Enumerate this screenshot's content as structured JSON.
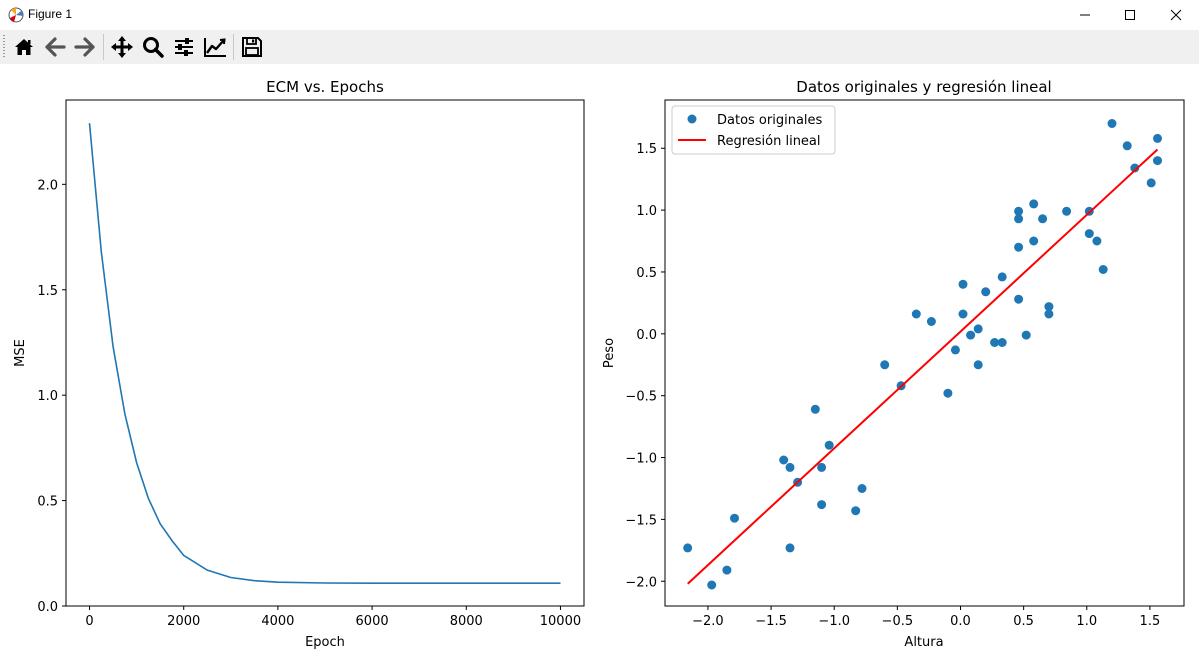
{
  "window": {
    "title": "Figure 1",
    "controls": [
      "minimize-icon",
      "maximize-icon",
      "close-icon"
    ]
  },
  "toolbar": {
    "buttons": [
      "home-icon",
      "back-arrow-icon",
      "forward-arrow-icon",
      "pan-icon",
      "zoom-icon",
      "subplots-config-icon",
      "axes-edit-icon",
      "save-icon"
    ]
  },
  "chart_data": [
    {
      "type": "line",
      "title": "ECM vs. Epochs",
      "xlabel": "Epoch",
      "ylabel": "MSE",
      "xlim": [
        -500,
        10500
      ],
      "ylim": [
        0.0,
        2.4
      ],
      "xticks": [
        0,
        2000,
        4000,
        6000,
        8000,
        10000
      ],
      "xtick_labels": [
        "0",
        "2000",
        "4000",
        "6000",
        "8000",
        "10000"
      ],
      "yticks": [
        0.0,
        0.5,
        1.0,
        1.5,
        2.0
      ],
      "ytick_labels": [
        "0.0",
        "0.5",
        "1.0",
        "1.5",
        "2.0"
      ],
      "grid": false,
      "series": [
        {
          "color": "#1f77b4",
          "x": [
            0,
            250,
            500,
            750,
            1000,
            1250,
            1500,
            1750,
            2000,
            2500,
            3000,
            3500,
            4000,
            5000,
            6000,
            7000,
            8000,
            9000,
            10000
          ],
          "y": [
            2.29,
            1.68,
            1.23,
            0.91,
            0.68,
            0.51,
            0.39,
            0.31,
            0.24,
            0.17,
            0.135,
            0.12,
            0.113,
            0.109,
            0.108,
            0.108,
            0.108,
            0.108,
            0.108
          ]
        }
      ]
    },
    {
      "type": "scatter",
      "title": "Datos originales y regresión lineal",
      "xlabel": "Altura",
      "ylabel": "Peso",
      "xlim": [
        -2.34,
        1.77
      ],
      "ylim": [
        -2.2,
        1.89
      ],
      "xticks": [
        -2.0,
        -1.5,
        -1.0,
        -0.5,
        0.0,
        0.5,
        1.0,
        1.5
      ],
      "xtick_labels": [
        "−2.0",
        "−1.5",
        "−1.0",
        "−0.5",
        "0.0",
        "0.5",
        "1.0",
        "1.5"
      ],
      "yticks": [
        -2.0,
        -1.5,
        -1.0,
        -0.5,
        0.0,
        0.5,
        1.0,
        1.5
      ],
      "ytick_labels": [
        "−2.0",
        "−1.5",
        "−1.0",
        "−0.5",
        "0.0",
        "0.5",
        "1.0",
        "1.5"
      ],
      "grid": false,
      "legend": {
        "position": "top-left",
        "entries": [
          "Datos originales",
          "Regresión lineal"
        ]
      },
      "series": [
        {
          "name": "Datos originales",
          "kind": "scatter",
          "color": "#1f77b4",
          "points": [
            [
              -2.16,
              -1.73
            ],
            [
              -1.97,
              -2.03
            ],
            [
              -1.85,
              -1.91
            ],
            [
              -1.79,
              -1.49
            ],
            [
              -1.4,
              -1.02
            ],
            [
              -1.35,
              -1.08
            ],
            [
              -1.35,
              -1.73
            ],
            [
              -1.29,
              -1.2
            ],
            [
              -1.15,
              -0.61
            ],
            [
              -1.1,
              -1.08
            ],
            [
              -1.1,
              -1.38
            ],
            [
              -1.04,
              -0.9
            ],
            [
              -0.83,
              -1.43
            ],
            [
              -0.78,
              -1.25
            ],
            [
              -0.6,
              -0.25
            ],
            [
              -0.47,
              -0.42
            ],
            [
              -0.35,
              0.16
            ],
            [
              -0.23,
              0.1
            ],
            [
              -0.1,
              -0.48
            ],
            [
              -0.04,
              -0.13
            ],
            [
              0.02,
              0.16
            ],
            [
              0.02,
              0.4
            ],
            [
              0.08,
              -0.01
            ],
            [
              0.14,
              0.04
            ],
            [
              0.14,
              -0.25
            ],
            [
              0.2,
              0.34
            ],
            [
              0.27,
              -0.07
            ],
            [
              0.33,
              -0.07
            ],
            [
              0.33,
              0.46
            ],
            [
              0.46,
              0.28
            ],
            [
              0.46,
              0.7
            ],
            [
              0.46,
              0.93
            ],
            [
              0.46,
              0.99
            ],
            [
              0.52,
              -0.01
            ],
            [
              0.58,
              0.75
            ],
            [
              0.58,
              1.05
            ],
            [
              0.65,
              0.93
            ],
            [
              0.7,
              0.16
            ],
            [
              0.7,
              0.22
            ],
            [
              0.84,
              0.99
            ],
            [
              1.02,
              0.99
            ],
            [
              1.02,
              0.81
            ],
            [
              1.08,
              0.75
            ],
            [
              1.13,
              0.52
            ],
            [
              1.2,
              1.7
            ],
            [
              1.32,
              1.52
            ],
            [
              1.38,
              1.34
            ],
            [
              1.51,
              1.22
            ],
            [
              1.56,
              1.58
            ],
            [
              1.56,
              1.4
            ]
          ]
        },
        {
          "name": "Regresión lineal",
          "kind": "line",
          "color": "#ff0000",
          "x": [
            -2.16,
            1.56
          ],
          "y": [
            -2.02,
            1.49
          ]
        }
      ]
    }
  ]
}
